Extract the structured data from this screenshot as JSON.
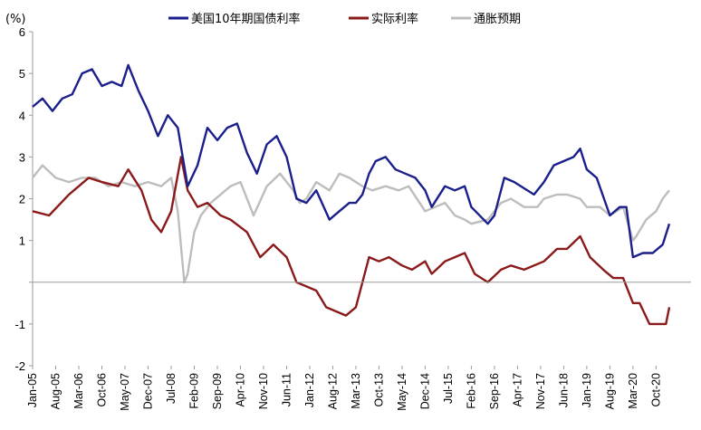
{
  "chart_data": {
    "type": "line",
    "unit_label": "(%)",
    "ylim": [
      -2,
      6
    ],
    "yticks": [
      "6",
      "5",
      "4",
      "3",
      "2",
      "1",
      "",
      "-1",
      "-2"
    ],
    "x_tick_labels": [
      "Jan-05",
      "Aug-05",
      "Mar-06",
      "Oct-06",
      "May-07",
      "Dec-07",
      "Jul-08",
      "Feb-09",
      "Sep-09",
      "Apr-10",
      "Nov-10",
      "Jun-11",
      "Jan-12",
      "Aug-12",
      "Mar-13",
      "Oct-13",
      "May-14",
      "Dec-14",
      "Jul-15",
      "Feb-16",
      "Sep-16",
      "Apr-17",
      "Nov-17",
      "Jun-18",
      "Jan-19",
      "Aug-19",
      "Mar-20",
      "Oct-20"
    ],
    "grid": false,
    "legend_position": "top",
    "series": [
      {
        "name": "美国10年期国债利率",
        "color": "#1a1f8c",
        "points": [
          [
            "2005-01",
            4.2
          ],
          [
            "2005-04",
            4.4
          ],
          [
            "2005-07",
            4.1
          ],
          [
            "2005-10",
            4.4
          ],
          [
            "2006-01",
            4.5
          ],
          [
            "2006-04",
            5.0
          ],
          [
            "2006-07",
            5.1
          ],
          [
            "2006-10",
            4.7
          ],
          [
            "2007-01",
            4.8
          ],
          [
            "2007-04",
            4.7
          ],
          [
            "2007-06",
            5.2
          ],
          [
            "2007-09",
            4.6
          ],
          [
            "2007-12",
            4.1
          ],
          [
            "2008-03",
            3.5
          ],
          [
            "2008-06",
            4.0
          ],
          [
            "2008-09",
            3.7
          ],
          [
            "2008-12",
            2.3
          ],
          [
            "2009-03",
            2.8
          ],
          [
            "2009-06",
            3.7
          ],
          [
            "2009-09",
            3.4
          ],
          [
            "2009-12",
            3.7
          ],
          [
            "2010-03",
            3.8
          ],
          [
            "2010-06",
            3.1
          ],
          [
            "2010-09",
            2.6
          ],
          [
            "2010-12",
            3.3
          ],
          [
            "2011-03",
            3.5
          ],
          [
            "2011-06",
            3.0
          ],
          [
            "2011-09",
            2.0
          ],
          [
            "2011-12",
            1.9
          ],
          [
            "2012-03",
            2.2
          ],
          [
            "2012-07",
            1.5
          ],
          [
            "2012-10",
            1.7
          ],
          [
            "2013-01",
            1.9
          ],
          [
            "2013-03",
            1.9
          ],
          [
            "2013-05",
            2.1
          ],
          [
            "2013-07",
            2.6
          ],
          [
            "2013-09",
            2.9
          ],
          [
            "2013-12",
            3.0
          ],
          [
            "2014-03",
            2.7
          ],
          [
            "2014-06",
            2.6
          ],
          [
            "2014-09",
            2.5
          ],
          [
            "2014-12",
            2.2
          ],
          [
            "2015-02",
            1.8
          ],
          [
            "2015-06",
            2.3
          ],
          [
            "2015-09",
            2.2
          ],
          [
            "2015-12",
            2.3
          ],
          [
            "2016-02",
            1.8
          ],
          [
            "2016-07",
            1.4
          ],
          [
            "2016-09",
            1.6
          ],
          [
            "2016-12",
            2.5
          ],
          [
            "2017-03",
            2.4
          ],
          [
            "2017-09",
            2.1
          ],
          [
            "2017-12",
            2.4
          ],
          [
            "2018-03",
            2.8
          ],
          [
            "2018-06",
            2.9
          ],
          [
            "2018-09",
            3.0
          ],
          [
            "2018-11",
            3.2
          ],
          [
            "2019-01",
            2.7
          ],
          [
            "2019-04",
            2.5
          ],
          [
            "2019-08",
            1.6
          ],
          [
            "2019-11",
            1.8
          ],
          [
            "2020-01",
            1.8
          ],
          [
            "2020-03",
            0.6
          ],
          [
            "2020-06",
            0.7
          ],
          [
            "2020-09",
            0.7
          ],
          [
            "2020-12",
            0.9
          ],
          [
            "2021-02",
            1.4
          ]
        ]
      },
      {
        "name": "实际利率",
        "color": "#8b1a1a",
        "points": [
          [
            "2005-01",
            1.7
          ],
          [
            "2005-06",
            1.6
          ],
          [
            "2005-12",
            2.1
          ],
          [
            "2006-06",
            2.5
          ],
          [
            "2006-10",
            2.4
          ],
          [
            "2007-03",
            2.3
          ],
          [
            "2007-06",
            2.7
          ],
          [
            "2007-10",
            2.2
          ],
          [
            "2008-01",
            1.5
          ],
          [
            "2008-04",
            1.2
          ],
          [
            "2008-07",
            1.7
          ],
          [
            "2008-10",
            3.0
          ],
          [
            "2008-12",
            2.2
          ],
          [
            "2009-03",
            1.8
          ],
          [
            "2009-06",
            1.9
          ],
          [
            "2009-10",
            1.6
          ],
          [
            "2010-01",
            1.5
          ],
          [
            "2010-06",
            1.2
          ],
          [
            "2010-10",
            0.6
          ],
          [
            "2011-02",
            0.9
          ],
          [
            "2011-06",
            0.6
          ],
          [
            "2011-09",
            0.0
          ],
          [
            "2011-12",
            -0.1
          ],
          [
            "2012-03",
            -0.2
          ],
          [
            "2012-06",
            -0.6
          ],
          [
            "2012-09",
            -0.7
          ],
          [
            "2012-12",
            -0.8
          ],
          [
            "2013-03",
            -0.6
          ],
          [
            "2013-05",
            0.0
          ],
          [
            "2013-07",
            0.6
          ],
          [
            "2013-10",
            0.5
          ],
          [
            "2014-01",
            0.6
          ],
          [
            "2014-05",
            0.4
          ],
          [
            "2014-08",
            0.3
          ],
          [
            "2014-12",
            0.5
          ],
          [
            "2015-02",
            0.2
          ],
          [
            "2015-06",
            0.5
          ],
          [
            "2015-09",
            0.6
          ],
          [
            "2015-12",
            0.7
          ],
          [
            "2016-03",
            0.2
          ],
          [
            "2016-07",
            0.0
          ],
          [
            "2016-11",
            0.3
          ],
          [
            "2017-02",
            0.4
          ],
          [
            "2017-06",
            0.3
          ],
          [
            "2017-12",
            0.5
          ],
          [
            "2018-04",
            0.8
          ],
          [
            "2018-07",
            0.8
          ],
          [
            "2018-11",
            1.1
          ],
          [
            "2019-02",
            0.6
          ],
          [
            "2019-06",
            0.3
          ],
          [
            "2019-09",
            0.1
          ],
          [
            "2019-12",
            0.1
          ],
          [
            "2020-03",
            -0.5
          ],
          [
            "2020-05",
            -0.5
          ],
          [
            "2020-08",
            -1.0
          ],
          [
            "2020-11",
            -1.0
          ],
          [
            "2021-01",
            -1.0
          ],
          [
            "2021-02",
            -0.6
          ]
        ]
      },
      {
        "name": "通胀预期",
        "color": "#bdbdbd",
        "points": [
          [
            "2005-01",
            2.5
          ],
          [
            "2005-04",
            2.8
          ],
          [
            "2005-08",
            2.5
          ],
          [
            "2005-12",
            2.4
          ],
          [
            "2006-04",
            2.5
          ],
          [
            "2006-08",
            2.5
          ],
          [
            "2006-12",
            2.3
          ],
          [
            "2007-04",
            2.4
          ],
          [
            "2007-08",
            2.3
          ],
          [
            "2007-12",
            2.4
          ],
          [
            "2008-04",
            2.3
          ],
          [
            "2008-07",
            2.5
          ],
          [
            "2008-09",
            1.7
          ],
          [
            "2008-11",
            0.0
          ],
          [
            "2008-12",
            0.2
          ],
          [
            "2009-02",
            1.2
          ],
          [
            "2009-04",
            1.6
          ],
          [
            "2009-07",
            1.9
          ],
          [
            "2009-10",
            2.1
          ],
          [
            "2010-01",
            2.3
          ],
          [
            "2010-04",
            2.4
          ],
          [
            "2010-08",
            1.6
          ],
          [
            "2010-12",
            2.3
          ],
          [
            "2011-04",
            2.6
          ],
          [
            "2011-08",
            2.2
          ],
          [
            "2011-10",
            1.9
          ],
          [
            "2011-12",
            2.0
          ],
          [
            "2012-03",
            2.4
          ],
          [
            "2012-07",
            2.2
          ],
          [
            "2012-10",
            2.6
          ],
          [
            "2013-01",
            2.5
          ],
          [
            "2013-05",
            2.3
          ],
          [
            "2013-08",
            2.2
          ],
          [
            "2013-12",
            2.3
          ],
          [
            "2014-04",
            2.2
          ],
          [
            "2014-07",
            2.3
          ],
          [
            "2014-12",
            1.7
          ],
          [
            "2015-03",
            1.8
          ],
          [
            "2015-06",
            1.9
          ],
          [
            "2015-09",
            1.6
          ],
          [
            "2015-12",
            1.5
          ],
          [
            "2016-02",
            1.4
          ],
          [
            "2016-07",
            1.5
          ],
          [
            "2016-11",
            1.9
          ],
          [
            "2017-02",
            2.0
          ],
          [
            "2017-06",
            1.8
          ],
          [
            "2017-10",
            1.8
          ],
          [
            "2017-12",
            2.0
          ],
          [
            "2018-04",
            2.1
          ],
          [
            "2018-07",
            2.1
          ],
          [
            "2018-11",
            2.0
          ],
          [
            "2019-01",
            1.8
          ],
          [
            "2019-05",
            1.8
          ],
          [
            "2019-08",
            1.6
          ],
          [
            "2019-12",
            1.8
          ],
          [
            "2020-03",
            1.0
          ],
          [
            "2020-04",
            1.1
          ],
          [
            "2020-07",
            1.5
          ],
          [
            "2020-10",
            1.7
          ],
          [
            "2020-12",
            2.0
          ],
          [
            "2021-02",
            2.2
          ]
        ]
      }
    ]
  }
}
